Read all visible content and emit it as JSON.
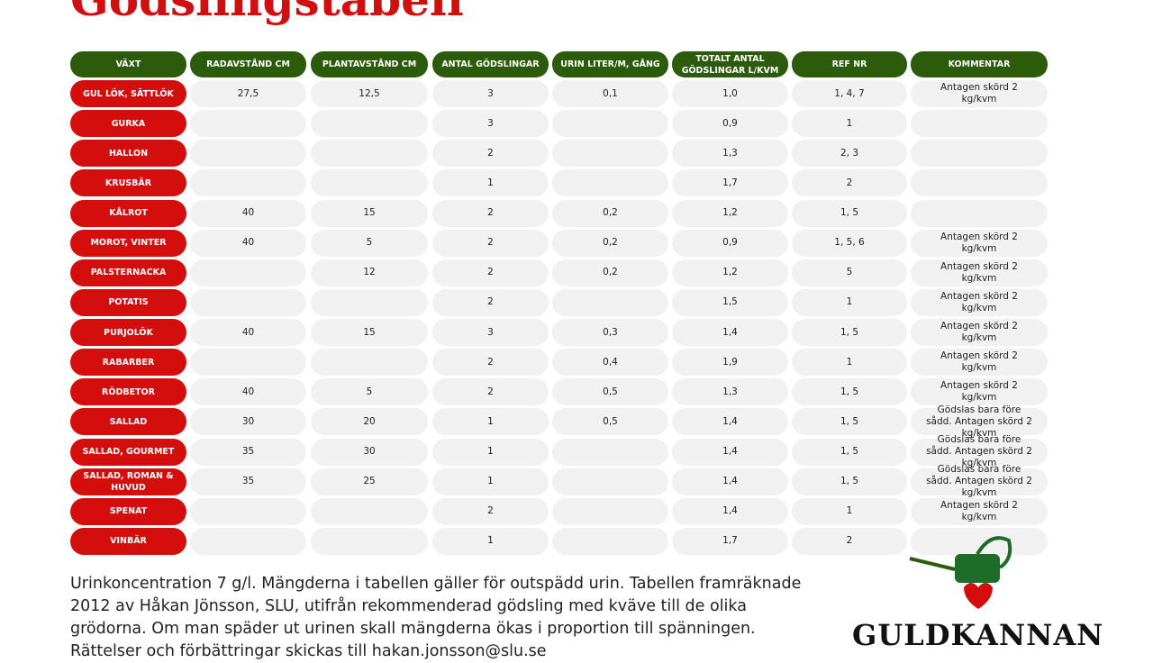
{
  "header": {
    "title": "Gödslingstabell"
  },
  "table": {
    "columns": [
      "VÄXT",
      "RADAVSTÅND CM",
      "PLANTAVSTÅND CM",
      "ANTAL GÖDSLINGAR",
      "URIN LITER/M, GÅNG",
      "TOTALT ANTAL GÖDSLINGAR L/KVM",
      "REF NR",
      "KOMMENTAR"
    ],
    "rows": [
      [
        "GUL LÖK, SÄTTLÖK",
        "27,5",
        "12,5",
        "3",
        "0,1",
        "1,0",
        "1, 4, 7",
        "Antagen skörd 2 kg/kvm"
      ],
      [
        "GURKA",
        null,
        null,
        "3",
        null,
        "0,9",
        "1",
        null
      ],
      [
        "HALLON",
        null,
        null,
        "2",
        null,
        "1,3",
        "2, 3",
        null
      ],
      [
        "KRUSBÄR",
        null,
        null,
        "1",
        null,
        "1,7",
        "2",
        null
      ],
      [
        "KÅLROT",
        "40",
        "15",
        "2",
        "0,2",
        "1,2",
        "1, 5",
        null
      ],
      [
        "MOROT, VINTER",
        "40",
        "5",
        "2",
        "0,2",
        "0,9",
        "1, 5, 6",
        "Antagen skörd 2 kg/kvm"
      ],
      [
        "PALSTERNACKA",
        null,
        "12",
        "2",
        "0,2",
        "1,2",
        "5",
        "Antagen skörd 2 kg/kvm"
      ],
      [
        "POTATIS",
        null,
        null,
        "2",
        null,
        "1,5",
        "1",
        "Antagen skörd 2 kg/kvm"
      ],
      [
        "PURJOLÖK",
        "40",
        "15",
        "3",
        "0,3",
        "1,4",
        "1, 5",
        "Antagen skörd 2 kg/kvm"
      ],
      [
        "RABARBER",
        null,
        null,
        "2",
        "0,4",
        "1,9",
        "1",
        "Antagen skörd 2 kg/kvm"
      ],
      [
        "RÖDBETOR",
        "40",
        "5",
        "2",
        "0,5",
        "1,3",
        "1, 5",
        "Antagen skörd 2 kg/kvm"
      ],
      [
        "SALLAD",
        "30",
        "20",
        "1",
        "0,5",
        "1,4",
        "1, 5",
        "Gödslas bara före sådd. Antagen skörd 2 kg/kvm"
      ],
      [
        "SALLAD, GOURMET",
        "35",
        "30",
        "1",
        null,
        "1,4",
        "1, 5",
        "Gödslas bara före sådd. Antagen skörd 2 kg/kvm"
      ],
      [
        "SALLAD, ROMAN & HUVUD",
        "35",
        "25",
        "1",
        null,
        "1,4",
        "1, 5",
        "Gödslas bara före sådd. Antagen skörd 2 kg/kvm"
      ],
      [
        "SPENAT",
        null,
        null,
        "2",
        null,
        "1,4",
        "1",
        "Antagen skörd 2 kg/kvm"
      ],
      [
        "VINBÄR",
        null,
        null,
        "1",
        null,
        "1,7",
        "2",
        null
      ]
    ]
  },
  "footnote": "Urinkoncentration 7 g/l. Mängderna i tabellen gäller för outspädd urin. Tabellen framräknade 2012 av Håkan Jönsson, SLU, utifrån rekommenderad gödsling med kväve till de olika grödorna. Om man späder ut urinen skall mängderna ökas i proportion till spänningen. Rättelser och förbättringar skickas till hakan.jonsson@slu.se",
  "brand": "GULDKANNAN"
}
